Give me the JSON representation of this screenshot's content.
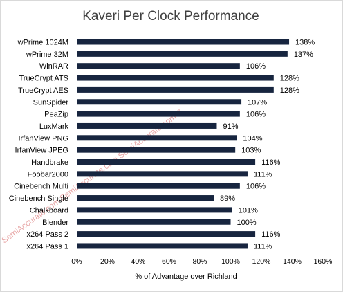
{
  "chart_data": {
    "type": "bar",
    "orientation": "horizontal",
    "title": "Kaveri Per Clock Performance",
    "xlabel": "% of Advantage over Richland",
    "ylabel": "",
    "xlim": [
      0,
      160
    ],
    "x_ticks": [
      0,
      20,
      40,
      60,
      80,
      100,
      120,
      140,
      160
    ],
    "tick_suffix": "%",
    "grid": false,
    "legend": "none",
    "bar_color": "#17253f",
    "watermark": "SemiAccurate.com SemiAccurate.com SemiAccurate.com S",
    "categories": [
      "wPrime 1024M",
      "wPrime 32M",
      "WinRAR",
      "TrueCrypt ATS",
      "TrueCrypt AES",
      "SunSpider",
      "PeaZip",
      "LuxMark",
      "IrfanView PNG",
      "IrfanView JPEG",
      "Handbrake",
      "Foobar2000",
      "Cinebench Multi",
      "Cinebench Single",
      "Chalkboard",
      "Blender",
      "x264 Pass 2",
      "x264 Pass 1"
    ],
    "values": [
      138,
      137,
      106,
      128,
      128,
      107,
      106,
      91,
      104,
      103,
      116,
      111,
      106,
      89,
      101,
      100,
      116,
      111
    ],
    "data_labels": [
      "138%",
      "137%",
      "106%",
      "128%",
      "128%",
      "107%",
      "106%",
      "91%",
      "104%",
      "103%",
      "116%",
      "111%",
      "106%",
      "89%",
      "101%",
      "100%",
      "116%",
      "111%"
    ]
  }
}
